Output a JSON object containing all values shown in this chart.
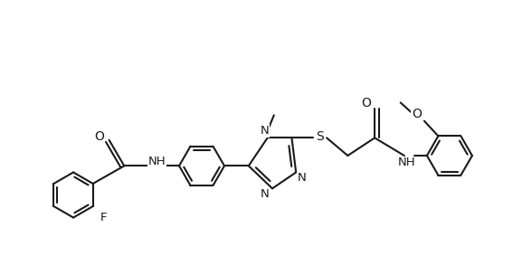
{
  "bg_color": "#ffffff",
  "line_color": "#1a1a1a",
  "line_width": 1.5,
  "font_size": 9.5,
  "fig_width": 5.67,
  "fig_height": 2.94,
  "dpi": 100,
  "hex_r": 0.42,
  "scale_x": 1.0,
  "scale_y": 1.0,
  "xlim": [
    0.0,
    9.5
  ],
  "ylim": [
    0.2,
    5.0
  ]
}
